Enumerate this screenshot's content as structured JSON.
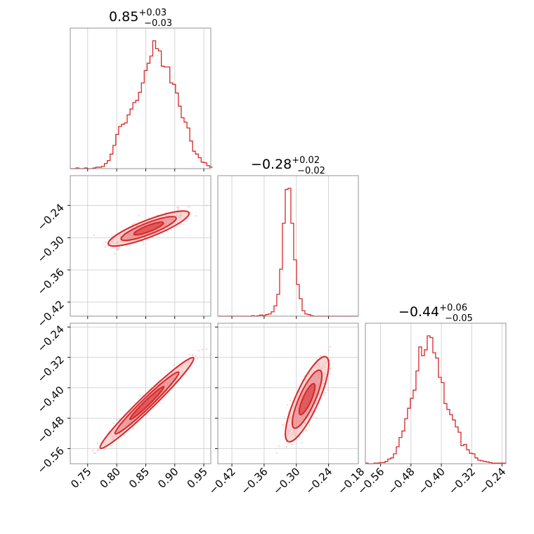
{
  "colors": {
    "accent": "#d62728",
    "fill_light": "#f2b6b6",
    "fill_mid": "#e3777a",
    "scatter": "#f5c3c3",
    "grid": "#c9c9c9",
    "frame": "#888888"
  },
  "chart_data": {
    "type": "corner",
    "parameters": [
      {
        "median": "0.85",
        "upper": "+0.03",
        "lower": "−0.03",
        "range": [
          0.72,
          0.962
        ],
        "ticks": [
          0.75,
          0.8,
          0.85,
          0.9,
          0.95
        ],
        "tick_labels": [
          "0.75",
          "0.80",
          "0.85",
          "0.90",
          "0.95"
        ]
      },
      {
        "median": "−0.28",
        "upper": "+0.02",
        "lower": "−0.02",
        "range": [
          -0.4462,
          -0.1846
        ],
        "ticks": [
          -0.42,
          -0.36,
          -0.3,
          -0.24,
          -0.18
        ],
        "tick_labels": [
          "−0.42",
          "−0.36",
          "−0.30",
          "−0.24",
          "−0.18"
        ]
      },
      {
        "median": "−0.44",
        "upper": "+0.06",
        "lower": "−0.05",
        "range": [
          -0.6,
          -0.23
        ],
        "ticks": [
          -0.56,
          -0.48,
          -0.4,
          -0.32,
          -0.24
        ],
        "tick_labels": [
          "−0.56",
          "−0.48",
          "−0.40",
          "−0.32",
          "−0.24"
        ]
      }
    ],
    "histograms": [
      {
        "param": 0,
        "bin_start": 0.72,
        "bin_width": 0.0049,
        "counts": [
          0,
          0,
          1,
          0,
          0,
          1,
          0,
          0,
          1,
          2,
          2,
          3,
          7,
          11,
          20,
          32,
          47,
          58,
          61,
          63,
          74,
          82,
          91,
          94,
          105,
          118,
          135,
          145,
          155,
          176,
          165,
          162,
          141,
          140,
          140,
          118,
          116,
          104,
          86,
          70,
          64,
          56,
          38,
          24,
          20,
          15,
          9,
          8,
          4,
          2
        ]
      },
      {
        "param": 1,
        "bin_start": -0.4462,
        "bin_width": 0.00523,
        "counts": [
          0,
          0,
          0,
          0,
          0,
          0,
          0,
          0,
          0,
          0,
          0,
          0,
          1,
          0,
          1,
          2,
          1,
          3,
          4,
          8,
          19,
          40,
          86,
          170,
          232,
          234,
          170,
          103,
          58,
          32,
          10,
          4,
          3,
          1,
          0,
          0,
          0,
          0,
          0,
          0,
          0,
          0,
          0,
          0,
          0,
          0,
          0,
          0,
          0,
          0
        ]
      },
      {
        "param": 2,
        "bin_start": -0.6,
        "bin_width": 0.0074,
        "counts": [
          1,
          0,
          0,
          1,
          1,
          2,
          2,
          4,
          8,
          10,
          17,
          29,
          45,
          56,
          77,
          95,
          112,
          126,
          159,
          200,
          185,
          195,
          219,
          216,
          190,
          181,
          148,
          139,
          103,
          93,
          84,
          75,
          63,
          54,
          31,
          33,
          24,
          18,
          17,
          10,
          6,
          5,
          4,
          3,
          2,
          1,
          1,
          1,
          1,
          1
        ]
      }
    ],
    "joint_2d": [
      {
        "x_param": 0,
        "y_param": 1,
        "center": [
          0.855,
          -0.285
        ],
        "correlation": "positive",
        "levels": 3
      },
      {
        "x_param": 0,
        "y_param": 2,
        "center": [
          0.855,
          -0.44
        ],
        "correlation": "strong positive",
        "levels": 3
      },
      {
        "x_param": 1,
        "y_param": 2,
        "center": [
          -0.28,
          -0.44
        ],
        "correlation": "positive",
        "levels": 3
      }
    ],
    "grid": true
  }
}
